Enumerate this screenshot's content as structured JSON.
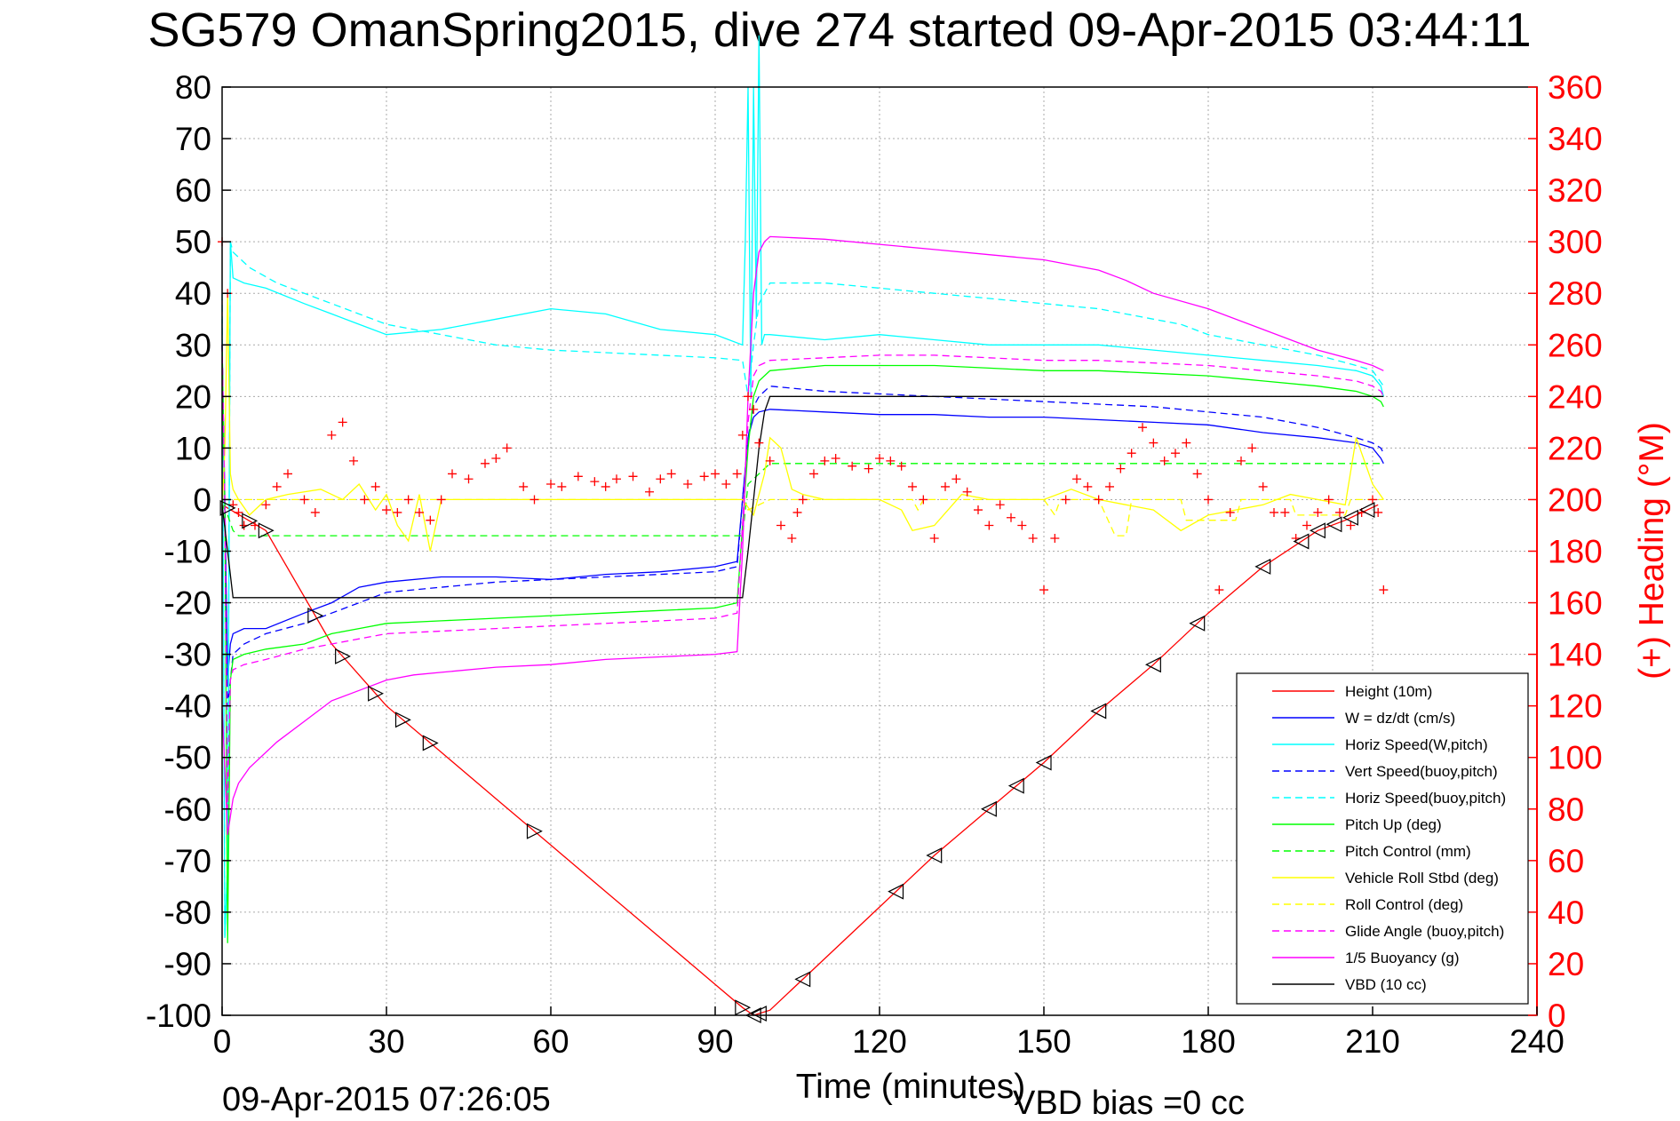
{
  "title": "SG579 OmanSpring2015, dive 274 started 09-Apr-2015 03:44:11",
  "footer": {
    "timestamp": "09-Apr-2015 07:26:05",
    "vbd_bias": "VBD bias =0 cc"
  },
  "chart_data": {
    "type": "line",
    "title": "SG579 OmanSpring2015, dive 274 started 09-Apr-2015 03:44:11",
    "xlabel": "Time (minutes)",
    "ylabel": "",
    "y2label": "(+) Heading (°M)",
    "xlim": [
      0,
      240
    ],
    "ylim": [
      -100,
      80
    ],
    "y2lim": [
      0,
      360
    ],
    "grid": true,
    "legend_position": "bottom-right",
    "x_ticks": [
      0,
      30,
      60,
      90,
      120,
      150,
      180,
      210,
      240
    ],
    "y_ticks": [
      80,
      70,
      60,
      50,
      40,
      30,
      20,
      10,
      0,
      -10,
      -20,
      -30,
      -40,
      -50,
      -60,
      -70,
      -80,
      -90,
      -100
    ],
    "y2_ticks": [
      360,
      340,
      320,
      300,
      280,
      260,
      240,
      220,
      200,
      180,
      160,
      140,
      120,
      100,
      80,
      60,
      40,
      20,
      0
    ],
    "series": [
      {
        "name": "Height (10m)",
        "color": "#ff0000",
        "style": "solid",
        "x": [
          0,
          8,
          20,
          30,
          40,
          50,
          60,
          70,
          80,
          90,
          95,
          97,
          100,
          107,
          120,
          130,
          140,
          150,
          160,
          170,
          180,
          190,
          200,
          205,
          208,
          211
        ],
        "y": [
          -1,
          -6,
          -28,
          -40,
          -49,
          -58,
          -67,
          -76,
          -85,
          -94,
          -98.5,
          -100,
          -99,
          -92,
          -79,
          -69,
          -60,
          -51,
          -41,
          -32,
          -22,
          -13,
          -6,
          -4,
          -2.5,
          -1
        ]
      },
      {
        "name": "W = dz/dt (cm/s)",
        "color": "#0000ff",
        "style": "solid",
        "x": [
          0,
          0.5,
          1,
          1.5,
          2,
          4,
          8,
          15,
          20,
          25,
          30,
          40,
          50,
          60,
          70,
          80,
          90,
          94,
          95,
          96,
          97,
          98,
          100,
          110,
          120,
          130,
          140,
          150,
          160,
          170,
          180,
          190,
          200,
          207,
          210,
          211.5,
          212
        ],
        "y": [
          30,
          0,
          -35,
          -28,
          -26,
          -25,
          -25,
          -22,
          -20,
          -17,
          -16,
          -15,
          -15,
          -15.5,
          -14.5,
          -14,
          -13,
          -12,
          0,
          12,
          16,
          17,
          17.5,
          17,
          16.5,
          16.5,
          16,
          16,
          15.5,
          15,
          14.5,
          13,
          12,
          11,
          10,
          8,
          7
        ]
      },
      {
        "name": "Horiz Speed(W,pitch)",
        "color": "#00ffff",
        "style": "solid",
        "x": [
          0,
          0.5,
          1,
          1.5,
          2,
          4,
          8,
          15,
          20,
          25,
          30,
          40,
          50,
          60,
          70,
          80,
          90,
          95,
          95.5,
          96,
          96.5,
          97,
          97.5,
          98,
          98.5,
          99,
          100,
          110,
          120,
          130,
          140,
          150,
          160,
          170,
          180,
          190,
          200,
          207,
          210,
          211.5,
          212
        ],
        "y": [
          35,
          -85,
          -70,
          50,
          43,
          42,
          41,
          38,
          36,
          34,
          32,
          33,
          35,
          37,
          36,
          33,
          32,
          30,
          50,
          80,
          20,
          80,
          35,
          90,
          30,
          32,
          32,
          31,
          32,
          31,
          30,
          30,
          30,
          29,
          28,
          27,
          26,
          25,
          24,
          22,
          20
        ]
      },
      {
        "name": "Vert Speed(buoy,pitch)",
        "color": "#0000ff",
        "style": "dashed",
        "x": [
          0,
          0.5,
          1,
          1.5,
          2,
          4,
          8,
          15,
          20,
          25,
          30,
          40,
          50,
          60,
          70,
          80,
          90,
          94,
          95,
          96,
          97,
          98,
          100,
          110,
          120,
          130,
          140,
          150,
          160,
          170,
          180,
          190,
          200,
          207,
          210,
          211.5,
          212
        ],
        "y": [
          30,
          -2,
          -40,
          -35,
          -30,
          -28,
          -26,
          -24,
          -22,
          -20,
          -18,
          -17,
          -16,
          -15.5,
          -15,
          -14.5,
          -14,
          -13,
          0,
          12,
          18,
          20,
          22,
          21,
          20.5,
          20,
          19.5,
          19,
          18.5,
          18,
          17,
          16,
          14,
          12,
          11,
          10,
          9
        ]
      },
      {
        "name": "Horiz Speed(buoy,pitch)",
        "color": "#00ffff",
        "style": "dashed",
        "x": [
          0,
          0.5,
          1,
          1.5,
          2,
          5,
          10,
          20,
          30,
          40,
          50,
          60,
          70,
          80,
          90,
          95,
          96,
          97,
          98,
          100,
          110,
          120,
          130,
          140,
          150,
          160,
          170,
          175,
          180,
          190,
          200,
          207,
          210,
          212
        ],
        "y": [
          40,
          -85,
          -70,
          50,
          48,
          45,
          42,
          38,
          34,
          32,
          30,
          29,
          28.5,
          28,
          27.5,
          27,
          20,
          30,
          38,
          42,
          42,
          41,
          40,
          39,
          38,
          37,
          35,
          34,
          32,
          30,
          28,
          26,
          25,
          22
        ]
      },
      {
        "name": "Pitch Up (deg)",
        "color": "#00ff00",
        "style": "solid",
        "x": [
          0,
          0.5,
          1,
          1.5,
          2,
          4,
          8,
          15,
          20,
          25,
          30,
          40,
          50,
          60,
          70,
          80,
          90,
          94,
          95,
          96,
          97,
          98,
          100,
          110,
          120,
          130,
          140,
          150,
          160,
          170,
          180,
          190,
          200,
          207,
          210,
          211.5,
          212
        ],
        "y": [
          30,
          -2,
          -86,
          -35,
          -31,
          -30,
          -29,
          -28,
          -26,
          -25,
          -24,
          -23.5,
          -23,
          -22.5,
          -22,
          -21.5,
          -21,
          -20,
          -5,
          10,
          20,
          23,
          25,
          26,
          26,
          26,
          25.5,
          25,
          25,
          24.5,
          24,
          23,
          22,
          21,
          20,
          19,
          18
        ]
      },
      {
        "name": "Pitch Control (mm)",
        "color": "#00ff00",
        "style": "dashed",
        "x": [
          0,
          1,
          2,
          3,
          95,
          96,
          99,
          100,
          210,
          212
        ],
        "y": [
          -1,
          -3,
          -6,
          -7,
          -7,
          3,
          6,
          7,
          7,
          7
        ]
      },
      {
        "name": "Vehicle Roll Stbd (deg)",
        "color": "#ffff00",
        "style": "solid",
        "x": [
          0,
          0.5,
          1,
          1.5,
          2,
          3,
          5,
          8,
          12,
          18,
          22,
          25,
          28,
          30,
          32,
          34,
          36,
          38,
          40,
          45,
          60,
          80,
          90,
          95,
          97,
          99,
          100,
          102,
          104,
          106,
          110,
          120,
          124,
          126,
          130,
          135,
          140,
          150,
          155,
          160,
          165,
          170,
          175,
          180,
          185,
          190,
          195,
          200,
          205,
          207,
          210,
          212
        ],
        "y": [
          -2,
          10,
          40,
          5,
          2,
          0,
          -3,
          0,
          1,
          2,
          0,
          3,
          -2,
          1,
          -5,
          -8,
          1,
          -10,
          0,
          0,
          0,
          0,
          0,
          0,
          -3,
          5,
          12,
          10,
          2,
          1,
          0,
          0,
          -2,
          -6,
          -5,
          1,
          0,
          0,
          2,
          0,
          -1,
          -2,
          -6,
          -3,
          -2,
          -1,
          1,
          0,
          -1,
          12,
          3,
          0
        ]
      },
      {
        "name": "Roll Control (deg)",
        "color": "#ffff00",
        "style": "dashed",
        "x": [
          0,
          1,
          2,
          95,
          96,
          100,
          126,
          127,
          128,
          140,
          150,
          152,
          153,
          160,
          163,
          165,
          166,
          175,
          176,
          185,
          186,
          195,
          196,
          205,
          206,
          212
        ],
        "y": [
          0,
          0,
          0,
          0,
          -2,
          0,
          0,
          -2,
          0,
          0,
          0,
          -3,
          0,
          0,
          -7,
          -7,
          0,
          0,
          -4,
          -4,
          0,
          0,
          -3,
          -3,
          0,
          0
        ]
      },
      {
        "name": "Glide Angle (buoy,pitch)",
        "color": "#ff00ff",
        "style": "dashed",
        "x": [
          0,
          0.5,
          1,
          1.5,
          2,
          4,
          8,
          15,
          20,
          25,
          30,
          40,
          50,
          60,
          70,
          80,
          90,
          94,
          95,
          96,
          97,
          98,
          100,
          110,
          120,
          130,
          140,
          150,
          160,
          170,
          180,
          190,
          200,
          207,
          210,
          211.5,
          212
        ],
        "y": [
          30,
          -2,
          -60,
          -35,
          -33,
          -32,
          -31,
          -29,
          -28,
          -27,
          -26,
          -25.5,
          -25,
          -24.5,
          -24,
          -23.5,
          -23,
          -22,
          -5,
          15,
          24,
          26,
          27,
          27.5,
          28,
          28,
          27.5,
          27,
          27,
          26.5,
          26,
          25,
          24,
          23,
          22,
          21,
          20
        ]
      },
      {
        "name": "1/5 Buoyancy (g)",
        "color": "#ff00ff",
        "style": "solid",
        "x": [
          0,
          1,
          2,
          3,
          5,
          10,
          15,
          20,
          25,
          30,
          35,
          40,
          50,
          60,
          70,
          80,
          90,
          94,
          95,
          96,
          97,
          98,
          99,
          100,
          110,
          120,
          130,
          140,
          150,
          160,
          165,
          170,
          180,
          190,
          200,
          207,
          210,
          212
        ],
        "y": [
          -40,
          -65,
          -58,
          -55,
          -52,
          -47,
          -43,
          -39,
          -37,
          -35,
          -34,
          -33.5,
          -32.5,
          -32,
          -31,
          -30.5,
          -30,
          -29.5,
          -10,
          20,
          40,
          48,
          50,
          51,
          50.5,
          49.5,
          48.5,
          47.5,
          46.5,
          44.5,
          42.5,
          40,
          37,
          33,
          29,
          27,
          26,
          25
        ]
      },
      {
        "name": "VBD (10 cc)",
        "color": "#000000",
        "style": "solid",
        "x": [
          0,
          1,
          2,
          95,
          96,
          97,
          98,
          99,
          100,
          210,
          211,
          212
        ],
        "y": [
          -1,
          -10,
          -19,
          -19,
          -10,
          0,
          10,
          17,
          20,
          20,
          20,
          20
        ]
      },
      {
        "name": "Heading",
        "color": "#ff0000",
        "style": "marker",
        "marker": "+",
        "axis": "right",
        "x": [
          0,
          1,
          2,
          3,
          4,
          6,
          8,
          10,
          12,
          15,
          17,
          20,
          22,
          24,
          26,
          28,
          30,
          32,
          34,
          36,
          38,
          40,
          42,
          45,
          48,
          50,
          52,
          55,
          57,
          60,
          62,
          65,
          68,
          70,
          72,
          75,
          78,
          80,
          82,
          85,
          88,
          90,
          92,
          94,
          95,
          96,
          97,
          98,
          100,
          102,
          104,
          105,
          106,
          108,
          110,
          112,
          115,
          118,
          120,
          122,
          124,
          126,
          128,
          130,
          132,
          134,
          136,
          138,
          140,
          142,
          144,
          146,
          148,
          150,
          152,
          154,
          156,
          158,
          160,
          162,
          164,
          166,
          168,
          170,
          172,
          174,
          176,
          178,
          180,
          182,
          184,
          186,
          188,
          190,
          192,
          194,
          196,
          198,
          200,
          202,
          204,
          206,
          208,
          210,
          211,
          212
        ],
        "y": [
          300,
          280,
          198,
          195,
          190,
          190,
          198,
          205,
          210,
          200,
          195,
          225,
          230,
          215,
          200,
          205,
          196,
          195,
          200,
          195,
          192,
          200,
          210,
          208,
          214,
          216,
          220,
          205,
          200,
          206,
          205,
          209,
          207,
          205,
          208,
          209,
          203,
          208,
          210,
          206,
          209,
          210,
          206,
          210,
          225,
          240,
          235,
          222,
          215,
          190,
          185,
          195,
          200,
          210,
          215,
          216,
          213,
          212,
          216,
          215,
          213,
          205,
          200,
          185,
          205,
          208,
          203,
          196,
          190,
          198,
          193,
          190,
          185,
          165,
          185,
          200,
          208,
          205,
          200,
          205,
          212,
          218,
          228,
          222,
          215,
          218,
          222,
          210,
          200,
          165,
          195,
          215,
          220,
          205,
          195,
          195,
          185,
          190,
          195,
          200,
          195,
          190,
          195,
          200,
          195,
          165
        ]
      }
    ]
  }
}
